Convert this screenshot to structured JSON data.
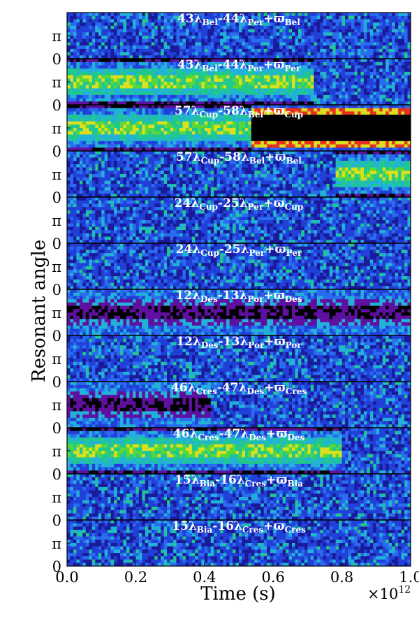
{
  "chart_data": {
    "type": "heatmap",
    "xlabel": "Time (s)",
    "ylabel": "Resonant angle",
    "x_range": [
      0.0,
      1.0
    ],
    "x_scale_label": "×10",
    "x_scale_exponent": "12",
    "x_ticks": [
      "0.0",
      "0.2",
      "0.4",
      "0.6",
      "0.8",
      "1.0"
    ],
    "y_ticks": [
      "0",
      "π"
    ],
    "y_range_each_panel": [
      0,
      2
    ],
    "colormap": [
      "#1a1a9a",
      "#2040d8",
      "#2a6cf0",
      "#22b2d8",
      "#20c890",
      "#58d838",
      "#d8e020",
      "#e83020",
      "#6010a0",
      "#000000"
    ],
    "panels": [
      {
        "title": {
          "c1": "43λ",
          "s1": "Bel",
          "mid": "-44λ",
          "s2": "Per",
          "plus": "+ϖ",
          "s3": "Bel"
        },
        "behavior": "circulating"
      },
      {
        "title": {
          "c1": "43λ",
          "s1": "Bel",
          "mid": "-44λ",
          "s2": "Per",
          "plus": "+ϖ",
          "s3": "Per"
        },
        "behavior": "librating_pi",
        "libration_windows": [
          [
            0.0,
            0.72
          ]
        ]
      },
      {
        "title": {
          "c1": "57λ",
          "s1": "Cup",
          "mid": "-58λ",
          "s2": "Bel",
          "plus": "+ϖ",
          "s3": "Cup"
        },
        "behavior": "librating_pi",
        "libration_windows": [
          [
            0.0,
            0.54
          ]
        ],
        "locked_windows": [
          [
            0.54,
            1.0
          ]
        ]
      },
      {
        "title": {
          "c1": "57λ",
          "s1": "Cup",
          "mid": "-58λ",
          "s2": "Bel",
          "plus": "+ϖ",
          "s3": "Bel"
        },
        "behavior": "circulating",
        "libration_windows": [
          [
            0.78,
            1.0
          ]
        ]
      },
      {
        "title": {
          "c1": "24λ",
          "s1": "Cup",
          "mid": "-25λ",
          "s2": "Per",
          "plus": "+ϖ",
          "s3": "Cup"
        },
        "behavior": "circulating"
      },
      {
        "title": {
          "c1": "24λ",
          "s1": "Cup",
          "mid": "-25λ",
          "s2": "Per",
          "plus": "+ϖ",
          "s3": "Per"
        },
        "behavior": "circulating"
      },
      {
        "title": {
          "c1": "12λ",
          "s1": "Des",
          "mid": "-13λ",
          "s2": "Por",
          "plus": "+ϖ",
          "s3": "Des"
        },
        "behavior": "librating_pi_dark",
        "libration_windows": [
          [
            0.0,
            1.0
          ]
        ]
      },
      {
        "title": {
          "c1": "12λ",
          "s1": "Des",
          "mid": "-13λ",
          "s2": "Por",
          "plus": "+ϖ",
          "s3": "Por"
        },
        "behavior": "circulating"
      },
      {
        "title": {
          "c1": "46λ",
          "s1": "Cres",
          "mid": "-47λ",
          "s2": "Des",
          "plus": "+ϖ",
          "s3": "Cres"
        },
        "behavior": "librating_pi_dark",
        "libration_windows": [
          [
            0.0,
            0.42
          ]
        ]
      },
      {
        "title": {
          "c1": "46λ",
          "s1": "Cres",
          "mid": "-47λ",
          "s2": "Des",
          "plus": "+ϖ",
          "s3": "Des"
        },
        "behavior": "librating_pi",
        "libration_windows": [
          [
            0.0,
            0.8
          ]
        ]
      },
      {
        "title": {
          "c1": "15λ",
          "s1": "Bia",
          "mid": "-16λ",
          "s2": "Cres",
          "plus": "+ϖ",
          "s3": "Bia"
        },
        "behavior": "circulating"
      },
      {
        "title": {
          "c1": "15λ",
          "s1": "Bia",
          "mid": "-16λ",
          "s2": "Cres",
          "plus": "+ϖ",
          "s3": "Cres"
        },
        "behavior": "circulating"
      }
    ]
  }
}
